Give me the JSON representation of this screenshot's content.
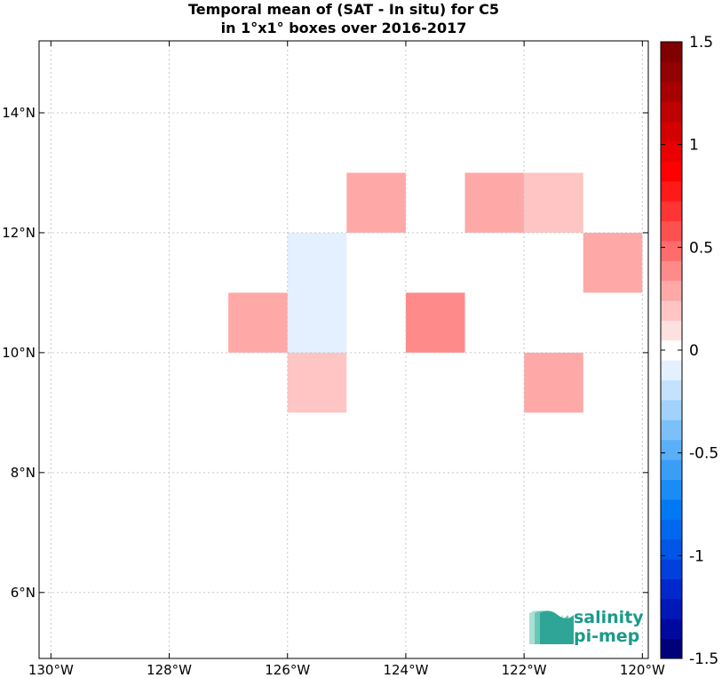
{
  "title": {
    "line1": "Temporal mean of (SAT - In situ) for C5",
    "line2": "in 1°x1° boxes over 2016-2017"
  },
  "map": {
    "lon_range": [
      -130.2,
      -119.9
    ],
    "lat_range": [
      4.9,
      15.2
    ],
    "lon_ticks": [
      {
        "value": -130,
        "label": "130°W"
      },
      {
        "value": -128,
        "label": "128°W"
      },
      {
        "value": -126,
        "label": "126°W"
      },
      {
        "value": -124,
        "label": "124°W"
      },
      {
        "value": -122,
        "label": "122°W"
      },
      {
        "value": -120,
        "label": "120°W"
      }
    ],
    "lat_ticks": [
      {
        "value": 6,
        "label": "6°N"
      },
      {
        "value": 8,
        "label": "8°N"
      },
      {
        "value": 10,
        "label": "10°N"
      },
      {
        "value": 12,
        "label": "12°N"
      },
      {
        "value": 14,
        "label": "14°N"
      }
    ],
    "grid": true,
    "cells": [
      {
        "lon": -125,
        "lat": 12,
        "value": 0.25
      },
      {
        "lon": -123,
        "lat": 12,
        "value": 0.25
      },
      {
        "lon": -122,
        "lat": 12,
        "value": 0.15
      },
      {
        "lon": -126,
        "lat": 11,
        "value": -0.1
      },
      {
        "lon": -126,
        "lat": 10,
        "value": -0.1
      },
      {
        "lon": -121,
        "lat": 11,
        "value": 0.25
      },
      {
        "lon": -127,
        "lat": 10,
        "value": 0.25
      },
      {
        "lon": -124,
        "lat": 10,
        "value": 0.35
      },
      {
        "lon": -126,
        "lat": 9,
        "value": 0.15
      },
      {
        "lon": -122,
        "lat": 9,
        "value": 0.25
      }
    ]
  },
  "colorbar": {
    "range": [
      -1.5,
      1.5
    ],
    "ticks": [
      {
        "value": 1.5,
        "label": "1.5"
      },
      {
        "value": 1,
        "label": "1"
      },
      {
        "value": 0.5,
        "label": "0.5"
      },
      {
        "value": 0,
        "label": "0"
      },
      {
        "value": -0.5,
        "label": "-0.5"
      },
      {
        "value": -1,
        "label": "-1"
      },
      {
        "value": -1.5,
        "label": "-1.5"
      }
    ],
    "colors_bottom_to_top": [
      "#00007a",
      "#0008a0",
      "#0018b8",
      "#0028cc",
      "#0040dc",
      "#0056e6",
      "#0068ee",
      "#007af4",
      "#1a8cf6",
      "#3a9ef7",
      "#5aaff8",
      "#7cc0fa",
      "#a0d2fb",
      "#c4e2fd",
      "#e4f0ff",
      "#ffffff",
      "#ffe0e0",
      "#ffc4c4",
      "#ffa8a8",
      "#ff8a8a",
      "#ff6c6c",
      "#ff5050",
      "#ff3434",
      "#ff1a1a",
      "#ff0000",
      "#ea0000",
      "#d40000",
      "#be0000",
      "#a80000",
      "#920000",
      "#800000"
    ]
  },
  "logo": {
    "line1": "salinity",
    "line2": "pi-mep"
  }
}
